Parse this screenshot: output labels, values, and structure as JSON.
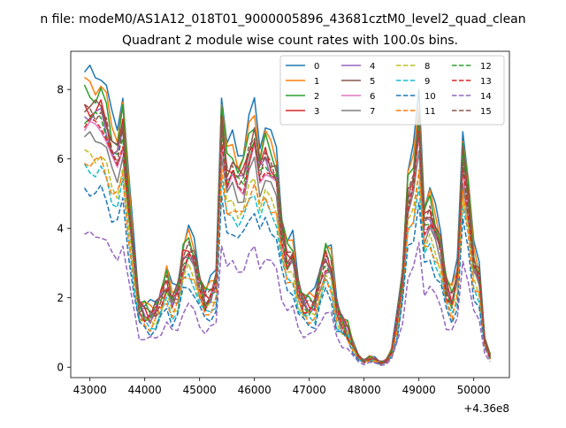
{
  "chart_data": {
    "type": "line",
    "suptitle": "n file: modeM0/AS1A12_018T01_9000005896_43681cztM0_level2_quad_clean",
    "title": "Quadrant 2 module wise count rates with 100.0s bins.",
    "xlabel": "",
    "ylabel": "",
    "x_offset_label": "+4.36e8",
    "xlim": [
      42650,
      50650
    ],
    "ylim": [
      -0.3,
      9.1
    ],
    "x_ticks": [
      43000,
      44000,
      45000,
      46000,
      47000,
      48000,
      49000,
      50000
    ],
    "x_tick_labels": [
      "43000",
      "44000",
      "45000",
      "46000",
      "47000",
      "48000",
      "49000",
      "50000"
    ],
    "y_ticks": [
      0,
      2,
      4,
      6,
      8
    ],
    "y_tick_labels": [
      "0",
      "2",
      "4",
      "6",
      "8"
    ],
    "grid": false,
    "legend_location": "top-right",
    "legend_columns": 4,
    "x": [
      42900,
      43000,
      43100,
      43200,
      43300,
      43400,
      43500,
      43600,
      43700,
      43800,
      43900,
      44000,
      44100,
      44200,
      44300,
      44400,
      44500,
      44600,
      44700,
      44800,
      44900,
      45000,
      45100,
      45200,
      45300,
      45400,
      45500,
      45600,
      45700,
      45800,
      45900,
      46000,
      46100,
      46200,
      46300,
      46400,
      46500,
      46600,
      46700,
      46800,
      46900,
      47000,
      47100,
      47200,
      47300,
      47400,
      47500,
      47600,
      47700,
      47800,
      47900,
      48000,
      48100,
      48200,
      48300,
      48400,
      48500,
      48600,
      48700,
      48800,
      48900,
      49000,
      49100,
      49200,
      49300,
      49400,
      49500,
      49600,
      49700,
      49800,
      49900,
      50000,
      50100,
      50200,
      50300
    ],
    "base_profile": [
      8.5,
      8.45,
      8.4,
      8.5,
      8.0,
      7.2,
      7.0,
      7.9,
      5.5,
      3.7,
      2.0,
      1.8,
      1.7,
      1.9,
      2.3,
      2.8,
      2.2,
      2.5,
      3.6,
      3.9,
      3.6,
      2.8,
      2.2,
      2.4,
      2.8,
      8.0,
      6.4,
      6.6,
      6.2,
      6.3,
      7.1,
      7.6,
      6.5,
      7.0,
      6.6,
      6.3,
      4.5,
      3.6,
      3.7,
      2.6,
      2.1,
      2.0,
      2.1,
      3.0,
      3.6,
      3.3,
      1.9,
      1.5,
      1.2,
      0.7,
      0.35,
      0.2,
      0.3,
      0.25,
      0.15,
      0.2,
      0.5,
      1.5,
      3.0,
      5.7,
      6.2,
      8.0,
      4.8,
      5.1,
      4.5,
      4.0,
      2.6,
      2.2,
      3.0,
      7.0,
      5.5,
      3.4,
      3.0,
      0.9,
      0.35
    ],
    "series": [
      {
        "name": "0",
        "color": "#1f77b4",
        "dash": "solid",
        "scale": 1.0
      },
      {
        "name": "1",
        "color": "#ff7f0e",
        "dash": "solid",
        "scale": 0.96
      },
      {
        "name": "2",
        "color": "#2ca02c",
        "dash": "solid",
        "scale": 0.93
      },
      {
        "name": "3",
        "color": "#d62728",
        "dash": "solid",
        "scale": 0.88
      },
      {
        "name": "4",
        "color": "#9467bd",
        "dash": "solid",
        "scale": 0.86
      },
      {
        "name": "5",
        "color": "#8c564b",
        "dash": "solid",
        "scale": 0.89
      },
      {
        "name": "6",
        "color": "#e377c2",
        "dash": "solid",
        "scale": 0.82
      },
      {
        "name": "7",
        "color": "#7f7f7f",
        "dash": "solid",
        "scale": 0.78
      },
      {
        "name": "8",
        "color": "#bcbd22",
        "dash": "dashed",
        "scale": 0.72
      },
      {
        "name": "9",
        "color": "#17becf",
        "dash": "dashed",
        "scale": 0.67
      },
      {
        "name": "10",
        "color": "#1f77b4",
        "dash": "dashed",
        "scale": 0.6
      },
      {
        "name": "11",
        "color": "#ff7f0e",
        "dash": "dashed",
        "scale": 0.7
      },
      {
        "name": "12",
        "color": "#2ca02c",
        "dash": "dashed",
        "scale": 0.85
      },
      {
        "name": "13",
        "color": "#d62728",
        "dash": "dashed",
        "scale": 0.83
      },
      {
        "name": "14",
        "color": "#9467bd",
        "dash": "dashed",
        "scale": 0.45
      },
      {
        "name": "15",
        "color": "#8c564b",
        "dash": "dashed",
        "scale": 0.87
      }
    ]
  }
}
